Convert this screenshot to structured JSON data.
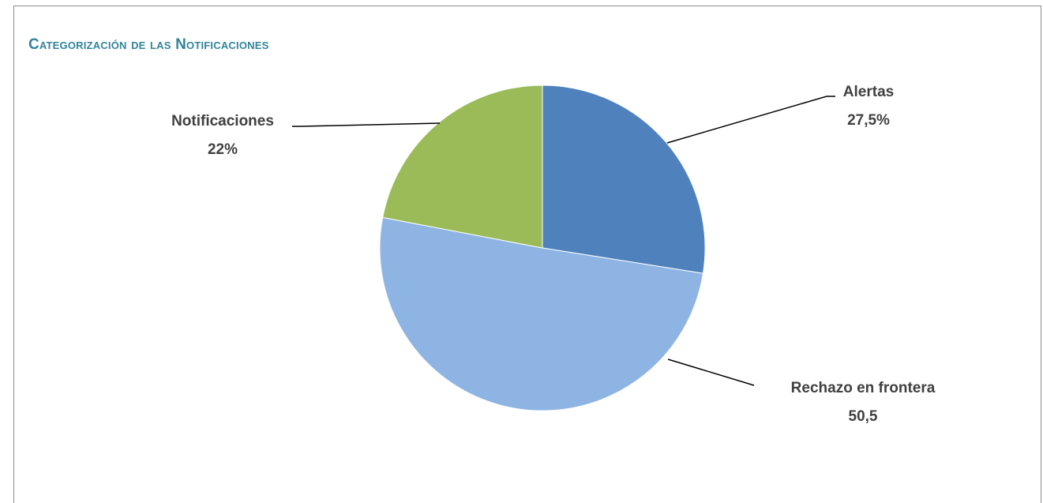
{
  "chart_data": {
    "type": "pie",
    "title": "Categorización de las Notificaciones",
    "slices": [
      {
        "name": "Alertas",
        "value": 27.5,
        "label": "27,5%",
        "color": "#4f81bd"
      },
      {
        "name": "Rechazo en frontera",
        "value": 50.5,
        "label": "50,5",
        "color": "#8eb4e3"
      },
      {
        "name": "Notificaciones",
        "value": 22,
        "label": "22%",
        "color": "#9bbb59"
      }
    ],
    "start_angle": "12 o'clock",
    "direction": "clockwise",
    "legend": "none",
    "title_color": "#31849b",
    "label_color": "#404040"
  }
}
